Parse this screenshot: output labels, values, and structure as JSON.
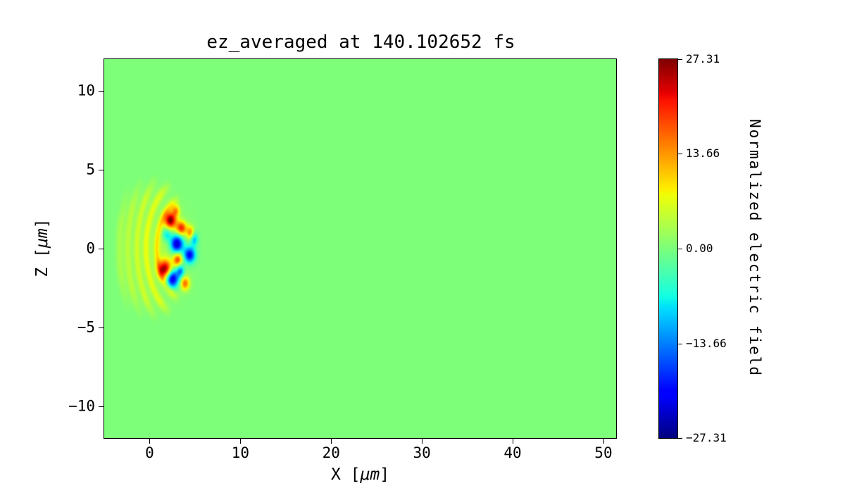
{
  "window": {
    "background": "#ffffff"
  },
  "chart_data": {
    "type": "heatmap",
    "title": "ez_averaged at 140.102652 fs",
    "xlabel": "X [μm]",
    "ylabel": "Z [μm]",
    "xlim": [
      -5.0,
      51.4
    ],
    "ylim": [
      -12.0,
      12.0
    ],
    "xticks": [
      0,
      10,
      20,
      30,
      40,
      50
    ],
    "xtick_labels": [
      "0",
      "10",
      "20",
      "30",
      "40",
      "50"
    ],
    "yticks": [
      -10,
      -5,
      0,
      5,
      10
    ],
    "ytick_labels": [
      "−10",
      "−5",
      "0",
      "5",
      "10"
    ],
    "grid": false,
    "colormap": "jet",
    "vmin": -27.31,
    "vmax": 27.31,
    "colorbar": {
      "label": "Normalized electric field",
      "ticks": [
        27.31,
        13.66,
        0.0,
        -13.66,
        -27.31
      ],
      "tick_labels": [
        "27.31",
        "13.66",
        "0.00",
        "−13.66",
        "−27.31"
      ]
    },
    "field": {
      "background_value": 0.0,
      "description": "Field is 0 (light green) over nearly the whole domain; a localized laser-wakefield structure of alternating positive (red) and negative (blue) lobes sits near x≈1–5 μm, z≈−2.5–2.5 μm, with faint yellow-green shell-like arcs opening leftward out to x≈−4 μm, z≈±4 μm.",
      "blobs": [
        {
          "x": 2.3,
          "z": 1.8,
          "sx": 0.45,
          "sz": 0.35,
          "a": 26
        },
        {
          "x": 3.5,
          "z": 1.3,
          "sx": 0.4,
          "sz": 0.3,
          "a": 20
        },
        {
          "x": 1.7,
          "z": -1.3,
          "sx": 0.5,
          "sz": 0.4,
          "a": 25
        },
        {
          "x": 3.1,
          "z": -0.7,
          "sx": 0.35,
          "sz": 0.3,
          "a": 18
        },
        {
          "x": 4.5,
          "z": 1.0,
          "sx": 0.3,
          "sz": 0.3,
          "a": 14
        },
        {
          "x": 2.9,
          "z": 2.4,
          "sx": 0.3,
          "sz": 0.25,
          "a": 12
        },
        {
          "x": 3.9,
          "z": -2.2,
          "sx": 0.35,
          "sz": 0.3,
          "a": 16
        },
        {
          "x": 3.0,
          "z": 0.3,
          "sx": 0.5,
          "sz": 0.4,
          "a": -26
        },
        {
          "x": 4.4,
          "z": -0.4,
          "sx": 0.45,
          "sz": 0.35,
          "a": -22
        },
        {
          "x": 2.5,
          "z": -1.9,
          "sx": 0.5,
          "sz": 0.4,
          "a": -25
        },
        {
          "x": 4.9,
          "z": 0.6,
          "sx": 0.3,
          "sz": 0.3,
          "a": -12
        },
        {
          "x": 1.9,
          "z": 0.9,
          "sx": 0.35,
          "sz": 0.3,
          "a": -10
        },
        {
          "x": 3.4,
          "z": -1.4,
          "sx": 0.3,
          "sz": 0.3,
          "a": -14
        },
        {
          "x": 1.5,
          "z": 0.0,
          "sx": 1.8,
          "sz": 1.8,
          "a": 3
        }
      ],
      "shells": [
        {
          "cx": 4.0,
          "cz": 0.0,
          "r": 3.2,
          "w": 0.22,
          "a": 7,
          "a1": 100,
          "a2": 260
        },
        {
          "cx": 4.0,
          "cz": 0.0,
          "r": 4.4,
          "w": 0.24,
          "a": 6,
          "a1": 110,
          "a2": 250
        },
        {
          "cx": 4.2,
          "cz": 0.0,
          "r": 5.6,
          "w": 0.26,
          "a": 5,
          "a1": 125,
          "a2": 235
        },
        {
          "cx": 4.4,
          "cz": 0.0,
          "r": 6.8,
          "w": 0.28,
          "a": 4,
          "a1": 138,
          "a2": 222
        },
        {
          "cx": 4.6,
          "cz": 0.0,
          "r": 7.9,
          "w": 0.3,
          "a": 3,
          "a1": 148,
          "a2": 212
        }
      ]
    }
  }
}
